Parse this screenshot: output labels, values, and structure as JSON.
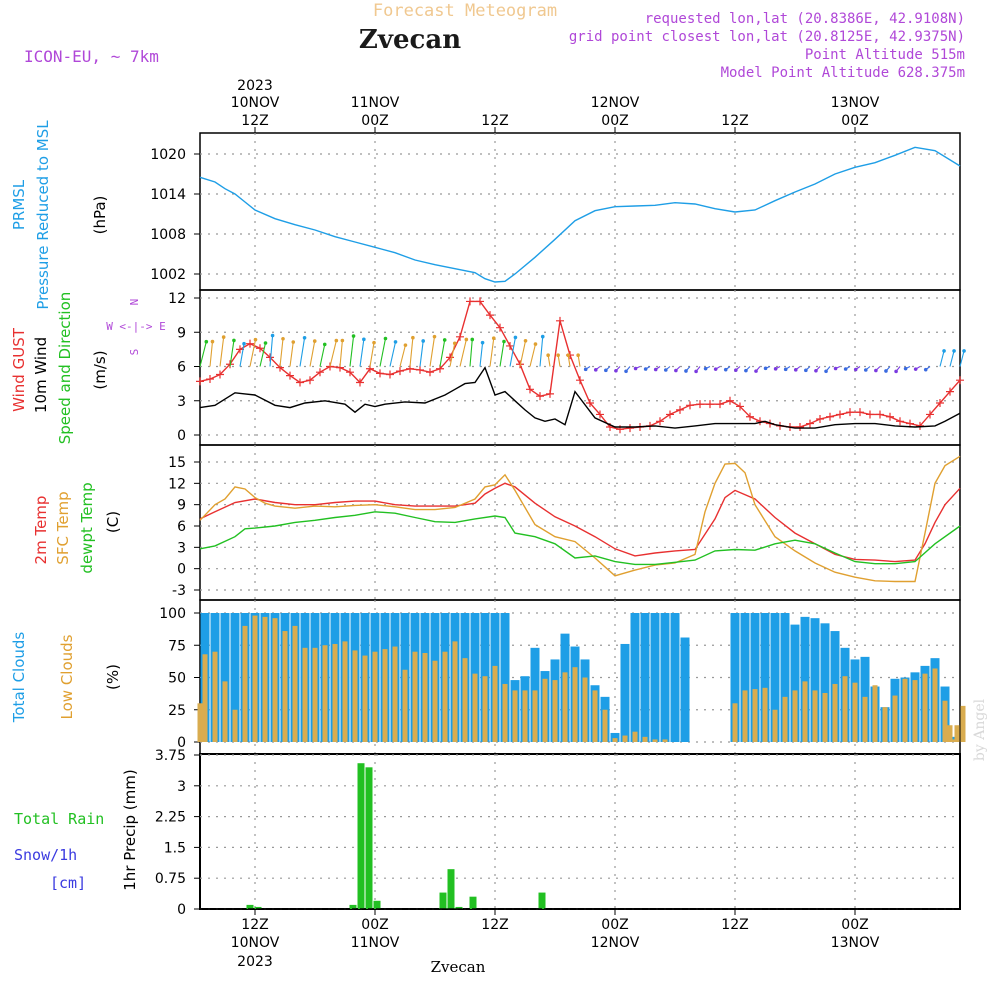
{
  "header": {
    "title": "Forecast Meteogram",
    "station": "Zvecan",
    "model": "ICON-EU, ~ 7km",
    "requested": "requested lon,lat (20.8386E, 42.9108N)",
    "grid_point": "grid point closest lon,lat (20.8125E, 42.9375N)",
    "point_altitude": "Point Altitude 515m",
    "model_altitude": "Model Point Altitude 628.375m",
    "footer_station": "Zvecan",
    "credit": "by Angel"
  },
  "time_axis": {
    "top_year": "2023",
    "bottom_year": "2023",
    "ticks": [
      {
        "hour": 12,
        "day": "10NOV",
        "time": "12Z"
      },
      {
        "hour": 24,
        "day": "11NOV",
        "time": "00Z"
      },
      {
        "hour": 36,
        "day": "",
        "time": "12Z"
      },
      {
        "hour": 48,
        "day": "12NOV",
        "time": "00Z"
      },
      {
        "hour": 60,
        "day": "",
        "time": "12Z"
      },
      {
        "hour": 72,
        "day": "13NOV",
        "time": "00Z"
      }
    ],
    "start_hour": 6.5,
    "end_hour": 82.5
  },
  "colors": {
    "pressure": "#1e9ee6",
    "gust": "#e83030",
    "wind": "#000000",
    "temp2m": "#e83030",
    "sfc_temp": "#e0a030",
    "dewpt": "#22c022",
    "total_clouds": "#1e9ee6",
    "low_clouds": "#d9ac4f",
    "rain": "#22c022",
    "snow": "#3a3ae0",
    "header_purple": "#b048d8",
    "title_orange": "#f0c890"
  },
  "panel_labels": {
    "pressure": [
      "PRMSL",
      "Pressure Reduced to MSL",
      "(hPa)"
    ],
    "wind": [
      "Wind GUST",
      "10m Wind",
      "Speed and Direction",
      "(m/s)"
    ],
    "compass": [
      "N",
      "W <-|-> E",
      "S"
    ],
    "temp": [
      "2m Temp",
      "SFC Temp",
      "dewpt Temp",
      "(C)"
    ],
    "clouds": [
      "Total Clouds",
      "Low Clouds",
      "(%)"
    ],
    "precip": [
      "Total Rain",
      "Snow/1h",
      "[cm]",
      "1hr Precip (mm)"
    ]
  },
  "chart_data": [
    {
      "type": "line",
      "name": "pressure",
      "ylabel": "(hPa)",
      "ylim": [
        999.5,
        1023
      ],
      "yticks": [
        1002,
        1008,
        1014,
        1020
      ],
      "series": [
        {
          "name": "PRMSL",
          "x": [
            6.5,
            8,
            9,
            10,
            11,
            12,
            14,
            16,
            18,
            20,
            22,
            24,
            26,
            28,
            30,
            32,
            34,
            35,
            36,
            37,
            38,
            40,
            42,
            44,
            46,
            48,
            50,
            52,
            54,
            56,
            58,
            60,
            62,
            64,
            66,
            68,
            70,
            72,
            74,
            76,
            78,
            80,
            82.5
          ],
          "values": [
            1016.5,
            1015.8,
            1014.8,
            1014.0,
            1012.8,
            1011.6,
            1010.3,
            1009.4,
            1008.6,
            1007.6,
            1006.8,
            1006.0,
            1005.2,
            1004.1,
            1003.4,
            1002.8,
            1002.2,
            1001.3,
            1000.8,
            1000.9,
            1002.0,
            1004.5,
            1007.2,
            1010.0,
            1011.5,
            1012.1,
            1012.2,
            1012.3,
            1012.7,
            1012.5,
            1011.8,
            1011.3,
            1011.6,
            1013.0,
            1014.3,
            1015.5,
            1017.0,
            1018.0,
            1018.7,
            1019.8,
            1021.0,
            1020.5,
            1018.2
          ]
        }
      ]
    },
    {
      "type": "line",
      "name": "wind",
      "ylabel": "(m/s)",
      "ylim": [
        -0.8,
        12.8
      ],
      "yticks": [
        0,
        3,
        6,
        9,
        12
      ],
      "series": [
        {
          "name": "Wind GUST",
          "x": [
            6.5,
            7.5,
            8.5,
            9.5,
            10.5,
            11.5,
            12.5,
            13.5,
            14.5,
            15.5,
            16.5,
            17.5,
            18.5,
            19.5,
            20.5,
            21.5,
            22.5,
            23.5,
            24.5,
            25.5,
            26.5,
            27.5,
            28.5,
            29.5,
            30.5,
            31.5,
            32.5,
            33.5,
            34.5,
            35.5,
            36.5,
            37.5,
            38.5,
            39.5,
            40.5,
            41.5,
            42.5,
            43.5,
            44.5,
            45.5,
            46.5,
            47.5,
            48.5,
            49.5,
            50.5,
            51.5,
            52.5,
            53.5,
            54.5,
            55.5,
            56.5,
            57.5,
            58.5,
            59.5,
            60.5,
            61.5,
            62.5,
            63.5,
            64.5,
            65.5,
            66.5,
            67.5,
            68.5,
            69.5,
            70.5,
            71.5,
            72.5,
            73.5,
            74.5,
            75.5,
            76.5,
            77.5,
            78.5,
            79.5,
            80.5,
            81.5,
            82.5
          ],
          "values": [
            4.7,
            4.9,
            5.3,
            6.2,
            7.5,
            8.0,
            7.6,
            6.8,
            5.9,
            5.2,
            4.6,
            4.8,
            5.5,
            6.0,
            5.9,
            5.5,
            4.6,
            5.8,
            5.4,
            5.3,
            5.6,
            5.8,
            5.7,
            5.5,
            5.8,
            6.8,
            8.6,
            11.7,
            11.7,
            10.5,
            9.4,
            7.8,
            6.2,
            4.0,
            3.4,
            3.6,
            10.0,
            7.0,
            4.8,
            2.8,
            1.8,
            0.7,
            0.5,
            0.6,
            0.7,
            0.8,
            1.2,
            1.8,
            2.2,
            2.6,
            2.7,
            2.7,
            2.7,
            3.0,
            2.5,
            1.6,
            1.2,
            1.0,
            0.8,
            0.7,
            0.7,
            1.0,
            1.4,
            1.6,
            1.8,
            2.0,
            2.0,
            1.8,
            1.8,
            1.6,
            1.2,
            1.0,
            0.8,
            1.8,
            2.8,
            3.8,
            4.8
          ]
        },
        {
          "name": "10m Wind",
          "x": [
            6.5,
            8,
            10,
            11,
            12,
            14,
            15.5,
            17,
            19,
            21,
            22,
            23,
            24,
            25,
            27,
            29,
            31,
            32,
            33,
            34,
            35,
            36,
            37,
            38,
            39,
            40,
            41,
            42,
            43,
            44,
            46,
            48,
            50,
            52,
            54,
            56,
            58,
            60,
            62,
            63,
            64,
            66,
            68,
            70,
            72,
            74,
            76,
            78,
            80,
            81,
            82.5
          ],
          "values": [
            2.4,
            2.6,
            3.7,
            3.6,
            3.5,
            2.6,
            2.4,
            2.8,
            3.0,
            2.7,
            2.0,
            2.7,
            2.5,
            2.7,
            2.9,
            2.8,
            3.5,
            4.0,
            4.5,
            4.6,
            5.9,
            3.5,
            3.8,
            3.0,
            2.2,
            1.5,
            1.2,
            1.4,
            0.9,
            3.8,
            1.5,
            0.7,
            0.7,
            0.8,
            0.6,
            0.8,
            1.0,
            1.0,
            1.0,
            1.2,
            0.9,
            0.6,
            0.6,
            0.9,
            1.0,
            1.0,
            0.8,
            0.7,
            0.8,
            1.2,
            1.9
          ]
        }
      ],
      "direction_arrows": {
        "hours": [
          6.5,
          82.5
        ],
        "level": 6.0
      }
    },
    {
      "type": "line",
      "name": "temperature",
      "ylabel": "(C)",
      "ylim": [
        -3.8,
        16.5
      ],
      "yticks": [
        -3,
        0,
        3,
        6,
        9,
        12,
        15
      ],
      "series": [
        {
          "name": "2m Temp",
          "x": [
            6.5,
            8,
            10,
            12,
            14,
            16,
            18,
            20,
            22,
            24,
            26,
            28,
            30,
            32,
            34,
            35,
            36,
            37,
            38,
            40,
            42,
            44,
            46,
            48,
            50,
            52,
            54,
            56,
            58,
            59,
            60,
            62,
            64,
            66,
            68,
            70,
            72,
            74,
            76,
            78,
            79,
            80,
            81,
            82.5
          ],
          "values": [
            7.0,
            8.0,
            9.3,
            9.8,
            9.3,
            9.0,
            9.0,
            9.3,
            9.5,
            9.5,
            9.0,
            8.8,
            8.8,
            8.8,
            9.2,
            10.5,
            11.3,
            12.0,
            11.5,
            9.2,
            7.3,
            6.0,
            4.5,
            2.8,
            1.8,
            2.2,
            2.5,
            2.7,
            7.0,
            10.0,
            11.0,
            9.8,
            7.2,
            5.0,
            3.5,
            2.0,
            1.3,
            1.2,
            1.0,
            1.2,
            3.5,
            6.5,
            9.0,
            11.3
          ]
        },
        {
          "name": "SFC Temp",
          "x": [
            6.5,
            8,
            9,
            10,
            11,
            12,
            13,
            14,
            16,
            18,
            20,
            22,
            24,
            26,
            28,
            30,
            32,
            34,
            35,
            36,
            37,
            38,
            40,
            42,
            44,
            46,
            48,
            50,
            52,
            54,
            56,
            57,
            58,
            59,
            60,
            61,
            62,
            64,
            66,
            68,
            70,
            72,
            74,
            76,
            78,
            79,
            80,
            81,
            82.5
          ],
          "values": [
            6.8,
            9.0,
            9.8,
            11.5,
            11.2,
            10.0,
            9.2,
            8.8,
            8.5,
            8.8,
            8.7,
            8.9,
            9.0,
            8.7,
            8.3,
            8.3,
            8.6,
            9.8,
            11.5,
            11.8,
            13.2,
            11.0,
            6.2,
            4.5,
            3.8,
            1.5,
            -1.0,
            -0.2,
            0.5,
            0.8,
            2.0,
            8.0,
            12.0,
            14.7,
            14.8,
            13.5,
            9.0,
            4.5,
            2.5,
            0.8,
            -0.5,
            -1.2,
            -1.7,
            -1.8,
            -1.8,
            5.0,
            12.0,
            14.5,
            15.8
          ]
        },
        {
          "name": "dewpt Temp",
          "x": [
            6.5,
            8,
            10,
            11,
            12,
            14,
            16,
            18,
            20,
            22,
            24,
            26,
            28,
            30,
            32,
            34,
            36,
            37,
            38,
            40,
            42,
            44,
            46,
            48,
            50,
            52,
            54,
            56,
            58,
            60,
            62,
            64,
            66,
            68,
            70,
            72,
            74,
            76,
            78,
            80,
            82.5
          ],
          "values": [
            2.8,
            3.2,
            4.5,
            5.6,
            5.7,
            6.0,
            6.5,
            6.8,
            7.2,
            7.5,
            8.0,
            7.8,
            7.2,
            6.6,
            6.5,
            7.0,
            7.4,
            7.2,
            5.0,
            4.5,
            3.5,
            1.5,
            1.8,
            1.0,
            0.6,
            0.6,
            0.9,
            1.2,
            2.5,
            2.7,
            2.6,
            3.5,
            4.0,
            3.5,
            2.2,
            1.0,
            0.7,
            0.7,
            1.0,
            3.5,
            6.0
          ]
        }
      ]
    },
    {
      "type": "bar",
      "name": "clouds",
      "ylabel": "(%)",
      "ylim": [
        0,
        100
      ],
      "yticks": [
        0,
        25,
        50,
        75,
        100
      ],
      "x": [
        7,
        8,
        9,
        10,
        11,
        12,
        13,
        14,
        15,
        16,
        17,
        18,
        19,
        20,
        21,
        22,
        23,
        24,
        25,
        26,
        27,
        28,
        29,
        30,
        31,
        32,
        33,
        34,
        35,
        36,
        37,
        38,
        39,
        40,
        41,
        42,
        43,
        44,
        45,
        46,
        47,
        48,
        49,
        50,
        51,
        52,
        53,
        54,
        55,
        56,
        57,
        58,
        59,
        60,
        61,
        62,
        63,
        64,
        65,
        66,
        67,
        68,
        69,
        70,
        71,
        72,
        73,
        74,
        75,
        76,
        77,
        78,
        79,
        80,
        81,
        82
      ],
      "series": [
        {
          "name": "Total Clouds",
          "values": [
            100,
            100,
            100,
            100,
            100,
            100,
            100,
            100,
            100,
            100,
            100,
            100,
            100,
            100,
            100,
            100,
            100,
            100,
            100,
            100,
            100,
            100,
            100,
            100,
            100,
            100,
            100,
            100,
            100,
            100,
            100,
            48,
            51,
            73,
            55,
            64,
            84,
            74,
            64,
            44,
            35,
            7,
            76,
            100,
            100,
            100,
            100,
            100,
            81,
            0,
            0,
            0,
            0,
            100,
            100,
            100,
            100,
            100,
            100,
            91,
            97,
            96,
            92,
            86,
            73,
            64,
            66,
            43,
            27,
            49,
            50,
            54,
            59,
            65,
            43,
            4
          ]
        },
        {
          "name": "Low Clouds",
          "values": [
            68,
            70,
            47,
            25,
            90,
            98,
            97,
            96,
            86,
            90,
            73,
            73,
            75,
            76,
            78,
            71,
            67,
            70,
            72,
            74,
            56,
            70,
            69,
            63,
            70,
            78,
            65,
            53,
            51,
            59,
            45,
            40,
            40,
            40,
            49,
            48,
            54,
            58,
            50,
            40,
            25,
            3,
            5,
            8,
            4,
            2,
            2,
            0,
            0,
            0,
            0,
            0,
            0,
            30,
            40,
            41,
            42,
            25,
            35,
            40,
            47,
            40,
            38,
            45,
            51,
            46,
            35,
            44,
            27,
            36,
            49,
            48,
            53,
            57,
            32,
            2
          ]
        }
      ],
      "extra_bars": [
        {
          "x": 6.5,
          "low": 30
        },
        {
          "x": 81.5,
          "low": 13
        },
        {
          "x": 82.2,
          "low": 13
        },
        {
          "x": 82.8,
          "low": 28
        }
      ]
    },
    {
      "type": "bar",
      "name": "precip",
      "ylabel": "1hr Precip (mm)",
      "ylim": [
        0,
        3.75
      ],
      "yticks": [
        0,
        0.75,
        1.5,
        2.25,
        3,
        3.75
      ],
      "x": [
        11.5,
        12.3,
        21.8,
        22.6,
        23.4,
        24.2,
        30.8,
        31.6,
        32.4,
        33.8,
        40.7
      ],
      "series": [
        {
          "name": "Total Rain",
          "values": [
            0.1,
            0.05,
            0.1,
            3.55,
            3.45,
            0.2,
            0.4,
            0.97,
            0.05,
            0.3,
            0.4
          ]
        }
      ]
    }
  ]
}
